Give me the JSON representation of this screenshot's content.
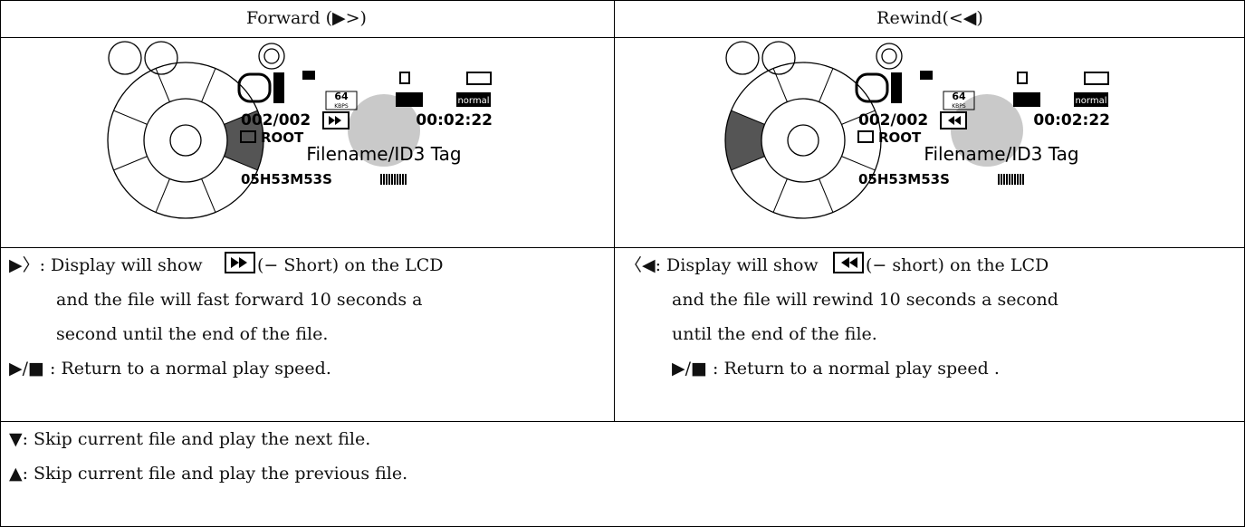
{
  "header": {
    "forward": "Forward (▶>)",
    "rewind": "Rewind(<◀)"
  },
  "lcd": {
    "bitrate": "64",
    "bitrate_unit": "KBPS",
    "eq": "normal",
    "track": "002/002",
    "time": "00:02:22",
    "folder": "ROOT",
    "tag": "Filename/ID3 Tag",
    "elapsed": "05H53M53S"
  },
  "forward": {
    "intro": "▶〉: Display will show",
    "after_icon": "(− Short) on the LCD",
    "continued": [
      "and the file will fast forward 10 seconds a",
      "second until the end of the file."
    ],
    "stop": "▶/■ : Return to a normal play speed."
  },
  "rewind": {
    "intro": "〈◀: Display will show",
    "after_icon": "(− short) on the LCD",
    "continued": [
      "and the file will rewind 10 seconds a second",
      "until the end of the file."
    ],
    "stop": "▶/■ : Return to a normal play speed ."
  },
  "footer": [
    "▼: Skip current file and play the next file.",
    "▲: Skip current file and play the previous file."
  ]
}
